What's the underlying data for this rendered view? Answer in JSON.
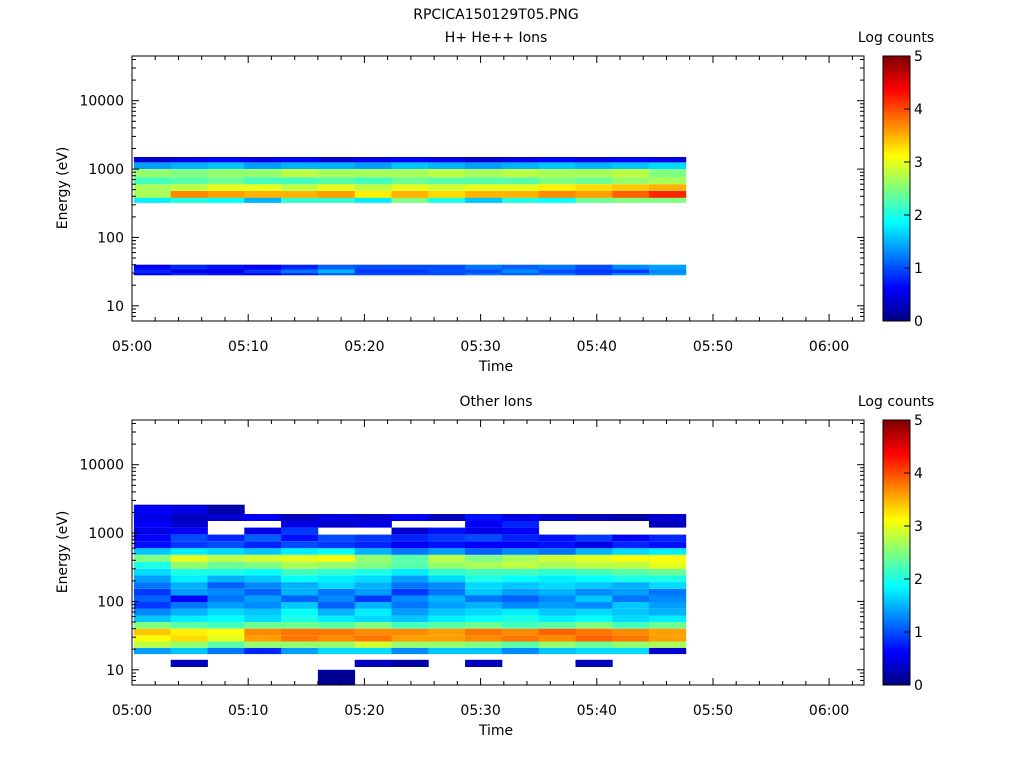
{
  "figure": {
    "title": "RPCICA150129T05.PNG"
  },
  "chart_data": [
    {
      "type": "heatmap",
      "title": "H+ He++ Ions",
      "xlabel": "Time",
      "ylabel": "Energy (eV)",
      "y_scale": "log",
      "ylim": [
        6,
        45000
      ],
      "xlim": [
        "05:00",
        "06:03"
      ],
      "x_ticks": [
        "05:00",
        "05:10",
        "05:20",
        "05:30",
        "05:40",
        "05:50",
        "06:00"
      ],
      "y_ticks": [
        "10",
        "100",
        "1000",
        "10000"
      ],
      "colorbar": {
        "label": "Log counts",
        "range": [
          0,
          5
        ],
        "ticks": [
          "0",
          "1",
          "2",
          "3",
          "4",
          "5"
        ],
        "colormap": "jet"
      },
      "time_bins": [
        "05:00:10",
        "05:03:20",
        "05:06:30",
        "05:09:40",
        "05:12:50",
        "05:16:00",
        "05:19:10",
        "05:22:20",
        "05:25:30",
        "05:28:40",
        "05:31:50",
        "05:35:00",
        "05:38:10",
        "05:41:20",
        "05:44:30"
      ],
      "bins": [
        {
          "e": [
            28,
            40
          ],
          "v": [
            0.6,
            0.8,
            0.7,
            0.6,
            0.8,
            1.1,
            1.0,
            1.0,
            1.0,
            1.2,
            1.1,
            1.2,
            1.0,
            1.3,
            1.4
          ]
        },
        {
          "e": [
            30,
            34
          ],
          "v": [
            0.8,
            0.5,
            0.5,
            0.9,
            1.2,
            1.5,
            0.9,
            0.9,
            1.0,
            1.0,
            1.3,
            1.0,
            0.9,
            0.9,
            1.3
          ]
        },
        {
          "e": [
            320,
            420
          ],
          "v": [
            1.8,
            2.0,
            1.9,
            1.5,
            2.1,
            2.1,
            1.8,
            2.5,
            2.0,
            1.6,
            2.0,
            1.9,
            2.4,
            2.5,
            2.5
          ]
        },
        {
          "e": [
            380,
            480
          ],
          "v": [
            2.7,
            3.7,
            3.6,
            3.5,
            3.5,
            3.6,
            3.2,
            3.5,
            3.3,
            3.5,
            3.5,
            3.7,
            3.6,
            3.9,
            4.2
          ]
        },
        {
          "e": [
            480,
            600
          ],
          "v": [
            2.7,
            2.8,
            3.0,
            3.0,
            2.8,
            3.0,
            2.8,
            3.0,
            2.9,
            3.0,
            3.0,
            3.2,
            3.3,
            3.4,
            3.5
          ]
        },
        {
          "e": [
            600,
            760
          ],
          "v": [
            2.2,
            2.3,
            2.4,
            2.2,
            2.2,
            2.3,
            2.2,
            2.4,
            2.3,
            2.3,
            2.3,
            2.5,
            2.4,
            2.6,
            2.7
          ]
        },
        {
          "e": [
            760,
            1000
          ],
          "v": [
            2.6,
            2.5,
            2.6,
            2.6,
            2.8,
            2.7,
            2.7,
            2.7,
            2.8,
            2.7,
            2.8,
            2.7,
            2.7,
            2.8,
            2.5
          ]
        },
        {
          "e": [
            1000,
            1250
          ],
          "v": [
            1.4,
            1.5,
            1.6,
            1.4,
            1.5,
            1.5,
            1.4,
            1.6,
            1.5,
            1.4,
            1.5,
            1.6,
            1.5,
            1.6,
            1.7
          ]
        },
        {
          "e": [
            1250,
            1500
          ],
          "v": [
            0.4,
            0.5,
            0.6,
            0.5,
            0.6,
            0.4,
            0.5,
            0.6,
            0.5,
            0.4,
            0.5,
            0.6,
            0.5,
            0.6,
            0.5
          ]
        }
      ]
    },
    {
      "type": "heatmap",
      "title": "Other Ions",
      "xlabel": "Time",
      "ylabel": "Energy (eV)",
      "y_scale": "log",
      "ylim": [
        6,
        45000
      ],
      "xlim": [
        "05:00",
        "06:03"
      ],
      "x_ticks": [
        "05:00",
        "05:10",
        "05:20",
        "05:30",
        "05:40",
        "05:50",
        "06:00"
      ],
      "y_ticks": [
        "10",
        "100",
        "1000",
        "10000"
      ],
      "colorbar": {
        "label": "Log counts",
        "range": [
          0,
          5
        ],
        "ticks": [
          "0",
          "1",
          "2",
          "3",
          "4",
          "5"
        ],
        "colormap": "jet"
      },
      "time_bins": [
        "05:00:10",
        "05:03:20",
        "05:06:30",
        "05:09:40",
        "05:12:50",
        "05:16:00",
        "05:19:10",
        "05:22:20",
        "05:25:30",
        "05:28:40",
        "05:31:50",
        "05:35:00",
        "05:38:10",
        "05:41:20",
        "05:44:30"
      ],
      "bins": [
        {
          "e": [
            17,
            21
          ],
          "v": [
            1.4,
            1.6,
            1.2,
            0.8,
            1.4,
            1.7,
            1.7,
            1.3,
            1.6,
            1.6,
            1.3,
            1.6,
            1.7,
            1.7,
            0.4
          ]
        },
        {
          "e": [
            21,
            26
          ],
          "v": [
            2.8,
            2.6,
            2.3,
            2.6,
            2.6,
            2.6,
            2.9,
            2.6,
            2.6,
            2.5,
            2.3,
            2.6,
            2.4,
            2.6,
            2.7
          ]
        },
        {
          "e": [
            26,
            32
          ],
          "v": [
            3.1,
            3.3,
            3.0,
            3.6,
            3.8,
            3.7,
            3.8,
            3.6,
            3.6,
            3.7,
            3.8,
            3.7,
            3.9,
            3.8,
            3.6
          ]
        },
        {
          "e": [
            32,
            40
          ],
          "v": [
            3.4,
            3.2,
            3.1,
            3.7,
            3.8,
            3.8,
            3.7,
            3.7,
            3.6,
            3.8,
            3.7,
            3.9,
            3.8,
            3.7,
            3.6
          ]
        },
        {
          "e": [
            40,
            50
          ],
          "v": [
            2.5,
            2.3,
            2.2,
            2.4,
            2.4,
            2.3,
            2.5,
            2.2,
            2.3,
            2.4,
            2.2,
            2.3,
            2.5,
            2.2,
            2.4
          ]
        },
        {
          "e": [
            50,
            62
          ],
          "v": [
            1.6,
            1.8,
            1.9,
            1.7,
            2.0,
            1.8,
            1.7,
            1.6,
            1.8,
            1.9,
            2.0,
            1.8,
            1.9,
            1.7,
            1.8
          ]
        },
        {
          "e": [
            62,
            78
          ],
          "v": [
            1.3,
            1.5,
            1.7,
            1.6,
            1.9,
            1.5,
            1.8,
            1.4,
            1.6,
            1.7,
            1.8,
            1.6,
            1.7,
            1.6,
            1.5
          ]
        },
        {
          "e": [
            78,
            98
          ],
          "v": [
            0.9,
            1.2,
            1.4,
            1.3,
            1.6,
            1.1,
            1.5,
            1.2,
            1.4,
            1.5,
            1.3,
            1.4,
            1.3,
            1.6,
            1.4
          ]
        },
        {
          "e": [
            98,
            122
          ],
          "v": [
            1.1,
            0.6,
            1.2,
            1.4,
            1.1,
            1.3,
            0.9,
            1.3,
            1.5,
            1.2,
            1.1,
            1.3,
            1.6,
            1.2,
            1.3
          ]
        },
        {
          "e": [
            122,
            153
          ],
          "v": [
            0.9,
            1.4,
            1.3,
            1.1,
            1.5,
            1.2,
            1.4,
            0.9,
            1.2,
            1.6,
            1.4,
            1.5,
            1.3,
            1.4,
            1.2
          ]
        },
        {
          "e": [
            153,
            192
          ],
          "v": [
            1.2,
            1.5,
            1.1,
            1.3,
            1.5,
            1.7,
            1.5,
            1.2,
            1.3,
            1.7,
            1.6,
            1.7,
            1.6,
            1.5,
            1.7
          ]
        },
        {
          "e": [
            192,
            240
          ],
          "v": [
            1.4,
            1.8,
            1.5,
            1.6,
            1.9,
            1.8,
            1.7,
            1.4,
            1.7,
            2.0,
            1.9,
            1.8,
            1.9,
            2.0,
            2.0
          ]
        },
        {
          "e": [
            240,
            300
          ],
          "v": [
            1.7,
            2.0,
            2.0,
            1.9,
            2.2,
            2.1,
            2.0,
            1.8,
            2.1,
            2.2,
            2.2,
            2.1,
            2.2,
            2.3,
            2.4
          ]
        },
        {
          "e": [
            300,
            380
          ],
          "v": [
            2.0,
            2.6,
            2.4,
            2.5,
            2.7,
            2.6,
            2.5,
            2.3,
            2.6,
            2.7,
            2.8,
            2.7,
            2.8,
            2.8,
            3.0
          ]
        },
        {
          "e": [
            380,
            480
          ],
          "v": [
            2.5,
            3.0,
            2.8,
            2.9,
            3.0,
            3.1,
            2.6,
            2.3,
            2.8,
            2.5,
            2.7,
            2.9,
            3.0,
            3.1,
            3.1
          ]
        },
        {
          "e": [
            480,
            600
          ],
          "v": [
            1.6,
            1.8,
            1.7,
            1.6,
            1.8,
            1.9,
            1.5,
            1.2,
            1.4,
            1.1,
            1.3,
            1.2,
            1.5,
            1.7,
            1.8
          ]
        },
        {
          "e": [
            600,
            760
          ],
          "v": [
            0.7,
            0.9,
            1.0,
            0.8,
            1.0,
            0.9,
            0.8,
            0.6,
            0.7,
            0.6,
            0.6,
            0.7,
            0.5,
            0.8,
            0.7
          ]
        },
        {
          "e": [
            760,
            950
          ],
          "v": [
            0.6,
            1.0,
            0.8,
            1.1,
            0.7,
            1.0,
            0.9,
            0.8,
            0.9,
            1.0,
            0.8,
            0.7,
            0.9,
            0.6,
            0.8
          ]
        },
        {
          "e": [
            950,
            1200
          ],
          "v": [
            0.5,
            0.6,
            null,
            0.5,
            0.9,
            null,
            null,
            0.4,
            0.7,
            0.5,
            0.6,
            null,
            null,
            null,
            null
          ]
        },
        {
          "e": [
            1200,
            1500
          ],
          "v": [
            0.6,
            0.4,
            null,
            null,
            0.5,
            0.4,
            0.5,
            null,
            null,
            0.6,
            0.8,
            null,
            null,
            null,
            0.3
          ]
        },
        {
          "e": [
            1500,
            1900
          ],
          "v": [
            0.5,
            0.3,
            0.4,
            0.6,
            0.3,
            0.5,
            0.4,
            0.6,
            0.3,
            0.7,
            0.5,
            0.4,
            0.3,
            0.2,
            0.4
          ]
        },
        {
          "e": [
            1900,
            2600
          ],
          "v": [
            0.6,
            0.5,
            0.2,
            null,
            null,
            null,
            null,
            null,
            null,
            null,
            null,
            null,
            null,
            null,
            null
          ]
        }
      ],
      "extra_cells": [
        {
          "t": "05:03:20",
          "e": [
            11,
            14
          ],
          "v": 0.3
        },
        {
          "t": "05:16:00",
          "e": [
            6,
            10
          ],
          "v": 0.1
        },
        {
          "t": "05:19:10",
          "e": [
            11,
            14
          ],
          "v": 0.3
        },
        {
          "t": "05:22:20",
          "e": [
            11,
            14
          ],
          "v": 0.2
        },
        {
          "t": "05:28:40",
          "e": [
            11,
            14
          ],
          "v": 0.3
        },
        {
          "t": "05:38:10",
          "e": [
            11,
            14
          ],
          "v": 0.3
        }
      ]
    }
  ]
}
